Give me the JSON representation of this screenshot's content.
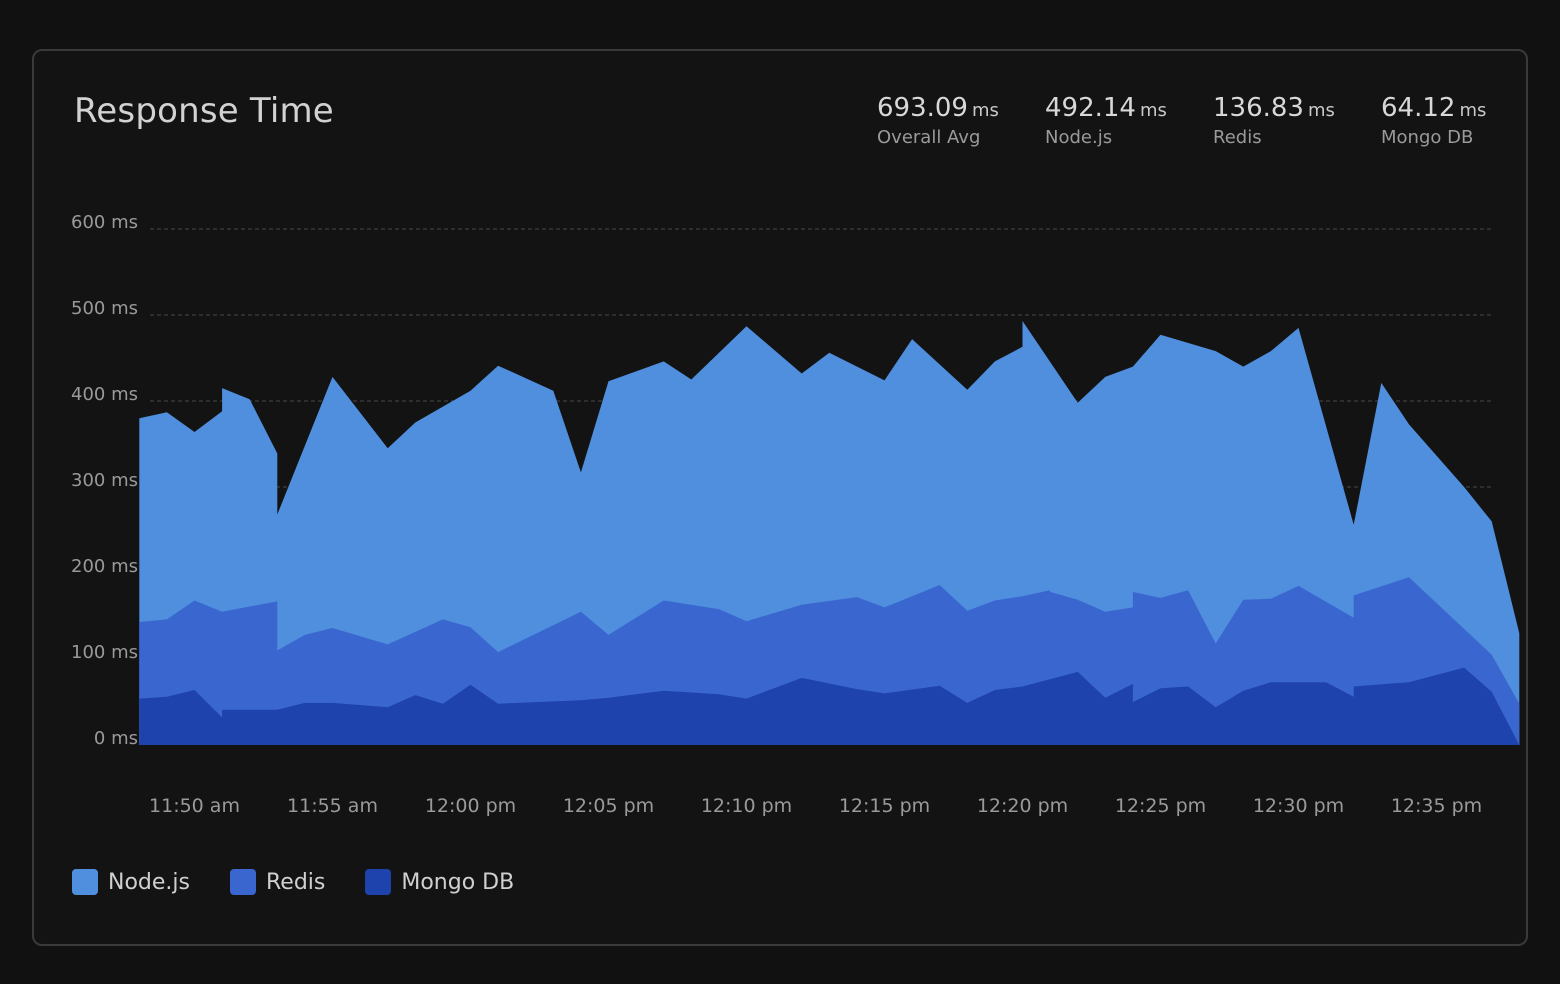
{
  "card": {
    "title": "Response Time",
    "stats": [
      {
        "value": "693.09",
        "unit": "ms",
        "label": "Overall Avg"
      },
      {
        "value": "492.14",
        "unit": "ms",
        "label": "Node.js"
      },
      {
        "value": "136.83",
        "unit": "ms",
        "label": "Redis"
      },
      {
        "value": "64.12",
        "unit": "ms",
        "label": "Mongo DB"
      }
    ]
  },
  "legend": [
    {
      "label": "Node.js",
      "color": "#4f8fdd"
    },
    {
      "label": "Redis",
      "color": "#3a66d0"
    },
    {
      "label": "Mongo DB",
      "color": "#1f43ad"
    }
  ],
  "chart_data": {
    "type": "area",
    "stacked": false,
    "x_unit": "minutes",
    "x_tick_labels": [
      "11:50 am",
      "11:55 am",
      "12:00 pm",
      "12:05 pm",
      "12:10 pm",
      "12:15 pm",
      "12:20 pm",
      "12:25 pm",
      "12:30 pm",
      "12:35 pm"
    ],
    "y_tick_labels": [
      "0 ms",
      "100 ms",
      "200 ms",
      "300 ms",
      "400 ms",
      "500 ms",
      "600 ms"
    ],
    "ylim": [
      0,
      600
    ],
    "grid": true,
    "legend_position": "bottom-left",
    "series": [
      {
        "name": "Node.js",
        "color": "#4f8fdd",
        "points": [
          [
            "11:48 am",
            380
          ],
          [
            "11:49 am",
            387
          ],
          [
            "11:50 am",
            364
          ],
          [
            "11:51 am",
            388
          ],
          [
            "11:51 am",
            415
          ],
          [
            "11:52 am",
            402
          ],
          [
            "11:53 am",
            339
          ],
          [
            "11:53 am",
            268
          ],
          [
            "11:55 am",
            428
          ],
          [
            "11:57 am",
            345
          ],
          [
            "11:58 am",
            375
          ],
          [
            "12:00 pm",
            412
          ],
          [
            "12:01 pm",
            441
          ],
          [
            "12:03 pm",
            412
          ],
          [
            "12:04 pm",
            317
          ],
          [
            "12:05 pm",
            423
          ],
          [
            "12:07 pm",
            446
          ],
          [
            "12:08 pm",
            425
          ],
          [
            "12:10 pm",
            487
          ],
          [
            "12:12 pm",
            432
          ],
          [
            "12:13 pm",
            456
          ],
          [
            "12:15 pm",
            424
          ],
          [
            "12:16 pm",
            472
          ],
          [
            "12:18 pm",
            413
          ],
          [
            "12:19 pm",
            446
          ],
          [
            "12:20 pm",
            463
          ],
          [
            "12:20 pm",
            493
          ],
          [
            "12:22 pm",
            398
          ],
          [
            "12:23 pm",
            428
          ],
          [
            "12:24 pm",
            440
          ],
          [
            "12:25 pm",
            477
          ],
          [
            "12:27 pm",
            458
          ],
          [
            "12:28 pm",
            440
          ],
          [
            "12:29 pm",
            458
          ],
          [
            "12:30 pm",
            485
          ],
          [
            "12:32 pm",
            256
          ],
          [
            "12:33 pm",
            421
          ],
          [
            "12:34 pm",
            373
          ],
          [
            "12:36 pm",
            300
          ],
          [
            "12:37 pm",
            260
          ],
          [
            "12:38 pm",
            130
          ]
        ]
      },
      {
        "name": "Redis",
        "color": "#3a66d0",
        "points": [
          [
            "11:48 am",
            143
          ],
          [
            "11:49 am",
            146
          ],
          [
            "11:50 am",
            168
          ],
          [
            "11:51 am",
            155
          ],
          [
            "11:53 am",
            167
          ],
          [
            "11:53 am",
            110
          ],
          [
            "11:54 am",
            128
          ],
          [
            "11:55 am",
            136
          ],
          [
            "11:57 am",
            117
          ],
          [
            "11:59 am",
            146
          ],
          [
            "12:00 pm",
            137
          ],
          [
            "12:01 pm",
            108
          ],
          [
            "12:04 pm",
            155
          ],
          [
            "12:05 pm",
            128
          ],
          [
            "12:07 pm",
            168
          ],
          [
            "12:09 pm",
            158
          ],
          [
            "12:10 pm",
            144
          ],
          [
            "12:12 pm",
            163
          ],
          [
            "12:14 pm",
            172
          ],
          [
            "12:15 pm",
            160
          ],
          [
            "12:17 pm",
            186
          ],
          [
            "12:18 pm",
            156
          ],
          [
            "12:19 pm",
            168
          ],
          [
            "12:20 pm",
            173
          ],
          [
            "12:21 pm",
            180
          ],
          [
            "12:21 pm",
            149
          ],
          [
            "12:21 pm",
            178
          ],
          [
            "12:22 pm",
            169
          ],
          [
            "12:23 pm",
            155
          ],
          [
            "12:24 pm",
            160
          ],
          [
            "12:24 pm",
            178
          ],
          [
            "12:25 pm",
            171
          ],
          [
            "12:26 pm",
            180
          ],
          [
            "12:27 pm",
            118
          ],
          [
            "12:28 pm",
            169
          ],
          [
            "12:29 pm",
            170
          ],
          [
            "12:30 pm",
            185
          ],
          [
            "12:32 pm",
            148
          ],
          [
            "12:32 pm",
            174
          ],
          [
            "12:34 pm",
            195
          ],
          [
            "12:37 pm",
            105
          ],
          [
            "12:38 pm",
            48
          ]
        ]
      },
      {
        "name": "Mongo DB",
        "color": "#1f43ad",
        "points": [
          [
            "11:48 am",
            54
          ],
          [
            "11:49 am",
            56
          ],
          [
            "11:50 am",
            64
          ],
          [
            "11:51 am",
            32
          ],
          [
            "11:51 am",
            41
          ],
          [
            "11:53 am",
            41
          ],
          [
            "11:54 am",
            49
          ],
          [
            "11:55 am",
            49
          ],
          [
            "11:57 am",
            44
          ],
          [
            "11:58 am",
            58
          ],
          [
            "11:59 am",
            48
          ],
          [
            "12:00 pm",
            70
          ],
          [
            "12:01 pm",
            48
          ],
          [
            "12:04 pm",
            52
          ],
          [
            "12:05 pm",
            55
          ],
          [
            "12:07 pm",
            63
          ],
          [
            "12:09 pm",
            59
          ],
          [
            "12:10 pm",
            54
          ],
          [
            "12:12 pm",
            78
          ],
          [
            "12:14 pm",
            65
          ],
          [
            "12:15 pm",
            60
          ],
          [
            "12:17 pm",
            69
          ],
          [
            "12:18 pm",
            49
          ],
          [
            "12:19 pm",
            64
          ],
          [
            "12:20 pm",
            68
          ],
          [
            "12:22 pm",
            85
          ],
          [
            "12:23 pm",
            55
          ],
          [
            "12:24 pm",
            71
          ],
          [
            "12:24 pm",
            50
          ],
          [
            "12:25 pm",
            66
          ],
          [
            "12:26 pm",
            68
          ],
          [
            "12:27 pm",
            44
          ],
          [
            "12:28 pm",
            63
          ],
          [
            "12:29 pm",
            73
          ],
          [
            "12:31 pm",
            73
          ],
          [
            "12:32 pm",
            56
          ],
          [
            "12:32 pm",
            68
          ],
          [
            "12:34 pm",
            73
          ],
          [
            "12:36 pm",
            90
          ],
          [
            "12:37 pm",
            62
          ],
          [
            "12:38 pm",
            0
          ]
        ]
      }
    ]
  }
}
